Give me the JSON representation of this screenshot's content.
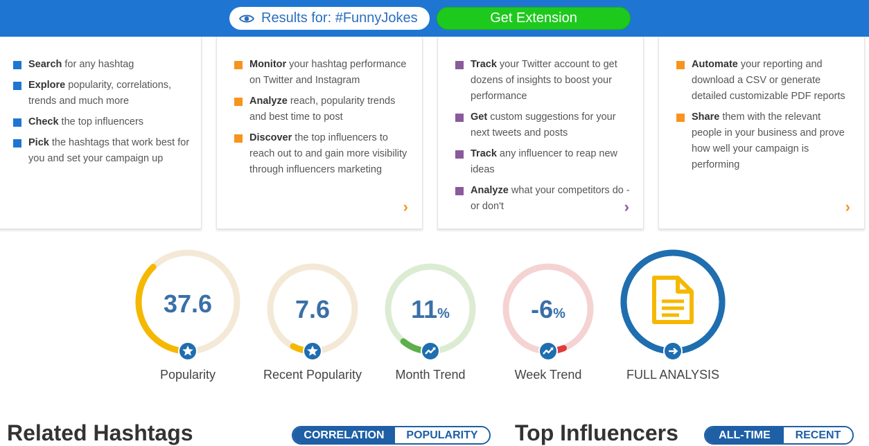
{
  "header": {
    "results_label": "Results for: #FunnyJokes",
    "extension_button": "Get Extension",
    "colors": {
      "bar": "#1e76d2",
      "extension": "#1ec91e"
    }
  },
  "cards": [
    {
      "color": "#1e76d2",
      "items": [
        {
          "bold": "Search",
          "rest": " for any hashtag"
        },
        {
          "bold": "Explore",
          "rest": " popularity, correlations, trends and much more"
        },
        {
          "bold": "Check",
          "rest": " the top influencers"
        },
        {
          "bold": "Pick",
          "rest": " the hashtags that work best for you and set your campaign up"
        }
      ]
    },
    {
      "color": "#f7941d",
      "items": [
        {
          "bold": "Monitor",
          "rest": " your hashtag performance on Twitter and Instagram"
        },
        {
          "bold": "Analyze",
          "rest": " reach, popularity trends and best time to post"
        },
        {
          "bold": "Discover",
          "rest": " the top influencers to reach out to and gain more visibility through influencers marketing"
        }
      ]
    },
    {
      "color": "#8a5a9a",
      "items": [
        {
          "bold": "Track",
          "rest": " your Twitter account to get dozens of insights to boost your performance"
        },
        {
          "bold": "Get",
          "rest": " custom suggestions for your next tweets and posts"
        },
        {
          "bold": "Track",
          "rest": " any influencer to reap new ideas"
        },
        {
          "bold": "Analyze",
          "rest": " what your competitors do - or don't"
        }
      ]
    },
    {
      "color": "#f7941d",
      "items": [
        {
          "bold": "Automate",
          "rest": " your reporting and download a CSV or generate detailed customizable PDF reports"
        },
        {
          "bold": "Share",
          "rest": " them with the relevant people in your business and prove how well your campaign is performing"
        }
      ]
    }
  ],
  "metrics": [
    {
      "value": "37.6",
      "unit": "",
      "label": "Popularity",
      "icon": "star-icon",
      "fill": 0.376,
      "track": "#f3e9d6",
      "arc": "#f5b800"
    },
    {
      "value": "7.6",
      "unit": "",
      "label": "Recent Popularity",
      "icon": "star-icon",
      "fill": 0.076,
      "track": "#f3e9d6",
      "arc": "#f5b800"
    },
    {
      "value": "11",
      "unit": "%",
      "label": "Month Trend",
      "icon": "trend-icon",
      "fill": 0.11,
      "track": "#dcecd3",
      "arc": "#5bb04a"
    },
    {
      "value": "-6",
      "unit": "%",
      "label": "Week Trend",
      "icon": "trend-icon",
      "fill": -0.06,
      "track": "#f5d3d3",
      "arc": "#e03a3a"
    },
    {
      "value": "",
      "unit": "",
      "label": "FULL ANALYSIS",
      "icon": "document-icon",
      "fill": 1,
      "track": "#1e6eb0",
      "arc": "#1e6eb0"
    }
  ],
  "related": {
    "title": "Related Hashtags",
    "toggle": [
      "CORRELATION",
      "POPULARITY"
    ]
  },
  "influencers": {
    "title": "Top Influencers",
    "toggle": [
      "ALL-TIME",
      "RECENT"
    ]
  }
}
